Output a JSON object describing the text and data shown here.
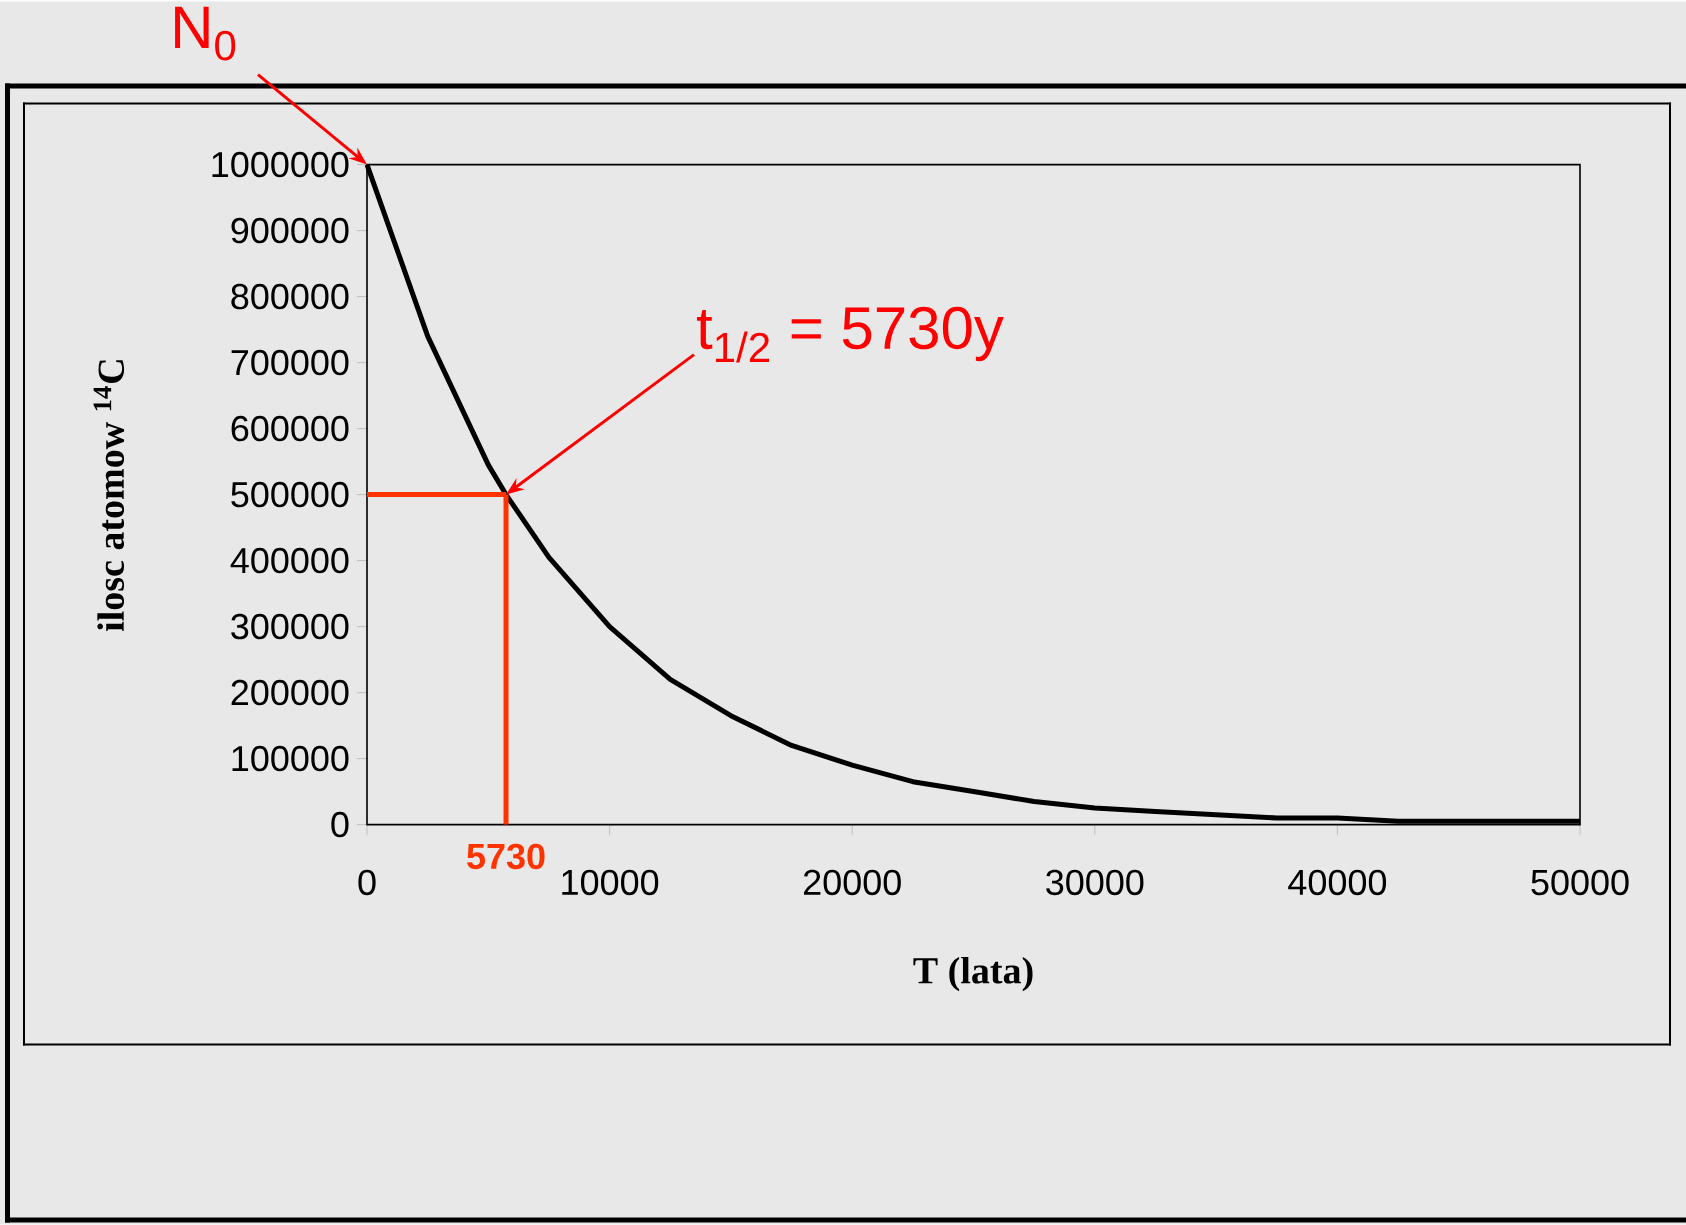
{
  "chart_data": {
    "type": "line",
    "xlabel": "T (lata)",
    "ylabel": "ilosc atomow $^{14}$C",
    "x": [
      0,
      2500,
      5000,
      5730,
      7500,
      10000,
      12500,
      15000,
      17500,
      20000,
      22500,
      25000,
      27500,
      30000,
      32500,
      35000,
      37500,
      40000,
      42500,
      45000,
      47500,
      50000
    ],
    "series": [
      {
        "color": "#000000",
        "values": [
          1000000,
          740000,
          545000,
          500000,
          405000,
          300000,
          220000,
          165000,
          120000,
          90000,
          65000,
          50000,
          35000,
          25000,
          20000,
          15000,
          10000,
          10000,
          5000,
          5000,
          5000,
          5000
        ]
      }
    ],
    "xlim": [
      0,
      50000
    ],
    "ylim": [
      0,
      1000000
    ],
    "xticks": [
      0,
      10000,
      20000,
      30000,
      40000,
      50000
    ],
    "yticks": [
      0,
      100000,
      200000,
      300000,
      400000,
      500000,
      600000,
      700000,
      800000,
      900000,
      1000000
    ],
    "ref_lines": [
      {
        "axis": "y",
        "value": 500000,
        "color": "#ff3300"
      },
      {
        "axis": "x",
        "value": 5730,
        "label": "5730",
        "color": "#ff3300"
      }
    ],
    "annotations": [
      {
        "text": "N$_{0}$",
        "x": 0,
        "y": 1000000
      },
      "t$_{1/2}$ = 5730y"
    ]
  }
}
